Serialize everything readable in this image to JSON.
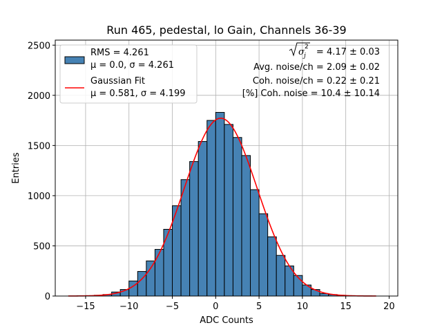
{
  "chart_data": {
    "type": "bar",
    "title": "Run 465, pedestal, lo Gain, Channels 36-39",
    "xlabel": "ADC Counts",
    "ylabel": "Entries",
    "xlim": [
      -18.5,
      21
    ],
    "ylim": [
      0,
      2550
    ],
    "xticks": [
      -15,
      -10,
      -5,
      0,
      5,
      10,
      15,
      20
    ],
    "xtick_labels": [
      "−15",
      "−10",
      "−5",
      "0",
      "5",
      "10",
      "15",
      "20"
    ],
    "yticks": [
      0,
      500,
      1000,
      1500,
      2000,
      2500
    ],
    "ytick_labels": [
      "0",
      "500",
      "1000",
      "1500",
      "2000",
      "2500"
    ],
    "grid": true,
    "legend_placement": "top-left",
    "colors": {
      "bar_fill": "#4682b4",
      "bar_edge": "#000000",
      "fit_line": "#ff0000",
      "grid": "#b0b0b0"
    },
    "histogram": {
      "bin_start": -17,
      "bin_width": 1,
      "counts": [
        0,
        2,
        4,
        8,
        15,
        40,
        65,
        150,
        245,
        350,
        465,
        665,
        900,
        1160,
        1340,
        1540,
        1750,
        1830,
        1710,
        1580,
        1400,
        1060,
        820,
        590,
        405,
        300,
        205,
        110,
        65,
        25,
        15,
        8,
        4,
        2,
        1,
        0
      ]
    },
    "fit": {
      "mu": 0.581,
      "sigma": 4.199,
      "amplitude": 1772,
      "x_range": [
        -17,
        18.5
      ]
    },
    "legend": [
      {
        "label_line1": "RMS = 4.261",
        "label_line2": "μ = 0.0, σ = 4.261",
        "marker": "patch"
      },
      {
        "label_line1": "Gaussian Fit",
        "label_line2": "μ = 0.581, σ = 4.199",
        "marker": "line"
      }
    ],
    "annotations": {
      "line1_value": "= 4.17 ± 0.03",
      "line2": "Avg. noise/ch = 2.09 ± 0.02",
      "line3": "Coh. noise/ch = 0.22 ± 0.21",
      "line4": "[%] Coh. noise = 10.4 ± 10.14"
    }
  }
}
